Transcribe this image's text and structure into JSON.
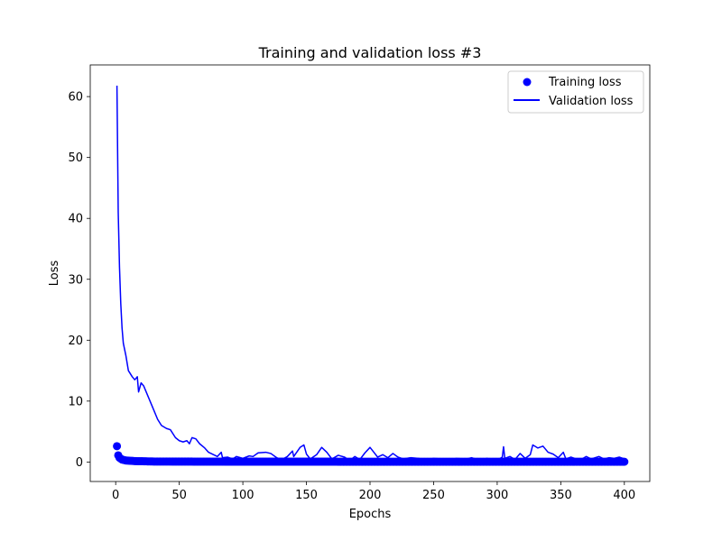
{
  "chart_data": {
    "type": "line",
    "title": "Training and validation loss #3",
    "xlabel": "Epochs",
    "ylabel": "Loss",
    "xlim": [
      -20,
      420
    ],
    "ylim": [
      -3.2,
      65.2
    ],
    "xticks": [
      0,
      50,
      100,
      150,
      200,
      250,
      300,
      350,
      400
    ],
    "yticks": [
      0,
      10,
      20,
      30,
      40,
      50,
      60
    ],
    "legend_position": "top-right",
    "color": "#0000ff",
    "series": [
      {
        "name": "Training loss",
        "style": "scatter",
        "x_start": 1,
        "x_end": 400,
        "anchors": [
          [
            1,
            2.6
          ],
          [
            2,
            1.1
          ],
          [
            3,
            0.7
          ],
          [
            5,
            0.4
          ],
          [
            8,
            0.25
          ],
          [
            15,
            0.15
          ],
          [
            30,
            0.08
          ],
          [
            100,
            0.05
          ],
          [
            400,
            0.04
          ]
        ]
      },
      {
        "name": "Validation loss",
        "style": "line",
        "anchors": [
          [
            1,
            61.8
          ],
          [
            2,
            41
          ],
          [
            3,
            32
          ],
          [
            4,
            26
          ],
          [
            5,
            22
          ],
          [
            6,
            19.5
          ],
          [
            8,
            17.5
          ],
          [
            10,
            15
          ],
          [
            13,
            14
          ],
          [
            15,
            13.5
          ],
          [
            17,
            14
          ],
          [
            18,
            11.5
          ],
          [
            20,
            13
          ],
          [
            22,
            12.5
          ],
          [
            25,
            11
          ],
          [
            28,
            9.5
          ],
          [
            30,
            8.5
          ],
          [
            33,
            7
          ],
          [
            36,
            6
          ],
          [
            40,
            5.5
          ],
          [
            43,
            5.3
          ],
          [
            47,
            4
          ],
          [
            50,
            3.5
          ],
          [
            53,
            3.3
          ],
          [
            56,
            3.5
          ],
          [
            58,
            3
          ],
          [
            60,
            4
          ],
          [
            63,
            3.8
          ],
          [
            66,
            3
          ],
          [
            70,
            2.3
          ],
          [
            73,
            1.6
          ],
          [
            77,
            1.2
          ],
          [
            80,
            0.9
          ],
          [
            83,
            1.6
          ],
          [
            84,
            0.7
          ],
          [
            88,
            0.8
          ],
          [
            92,
            0.5
          ],
          [
            95,
            0.9
          ],
          [
            100,
            0.6
          ],
          [
            105,
            1
          ],
          [
            108,
            0.9
          ],
          [
            112,
            1.5
          ],
          [
            118,
            1.6
          ],
          [
            122,
            1.4
          ],
          [
            126,
            0.8
          ],
          [
            130,
            0.3
          ],
          [
            135,
            0.9
          ],
          [
            139,
            1.8
          ],
          [
            140,
            0.9
          ],
          [
            145,
            2.4
          ],
          [
            148,
            2.8
          ],
          [
            150,
            1.3
          ],
          [
            153,
            0.5
          ],
          [
            158,
            1.2
          ],
          [
            162,
            2.4
          ],
          [
            166,
            1.6
          ],
          [
            170,
            0.5
          ],
          [
            175,
            1.1
          ],
          [
            180,
            0.8
          ],
          [
            184,
            0.2
          ],
          [
            188,
            0.9
          ],
          [
            192,
            0.4
          ],
          [
            196,
            1.5
          ],
          [
            200,
            2.4
          ],
          [
            203,
            1.6
          ],
          [
            206,
            0.8
          ],
          [
            210,
            1.2
          ],
          [
            214,
            0.7
          ],
          [
            218,
            1.4
          ],
          [
            222,
            0.8
          ],
          [
            226,
            0.5
          ],
          [
            232,
            0.7
          ],
          [
            238,
            0.6
          ],
          [
            244,
            0.4
          ],
          [
            250,
            0.6
          ],
          [
            256,
            0.5
          ],
          [
            262,
            0.3
          ],
          [
            268,
            0.6
          ],
          [
            274,
            0.4
          ],
          [
            280,
            0.7
          ],
          [
            286,
            0.3
          ],
          [
            292,
            0.6
          ],
          [
            296,
            0.4
          ],
          [
            300,
            0.3
          ],
          [
            304,
            0.8
          ],
          [
            305,
            2.5
          ],
          [
            306,
            0.6
          ],
          [
            310,
            0.9
          ],
          [
            314,
            0.4
          ],
          [
            318,
            1.4
          ],
          [
            322,
            0.6
          ],
          [
            326,
            1.2
          ],
          [
            328,
            2.8
          ],
          [
            332,
            2.3
          ],
          [
            336,
            2.6
          ],
          [
            340,
            1.6
          ],
          [
            344,
            1.3
          ],
          [
            348,
            0.7
          ],
          [
            352,
            1.6
          ],
          [
            354,
            0.5
          ],
          [
            358,
            0.8
          ],
          [
            362,
            0.5
          ],
          [
            366,
            0.4
          ],
          [
            370,
            0.9
          ],
          [
            374,
            0.5
          ],
          [
            380,
            0.9
          ],
          [
            384,
            0.5
          ],
          [
            388,
            0.7
          ],
          [
            392,
            0.6
          ],
          [
            396,
            0.8
          ],
          [
            400,
            0.5
          ]
        ]
      }
    ]
  }
}
